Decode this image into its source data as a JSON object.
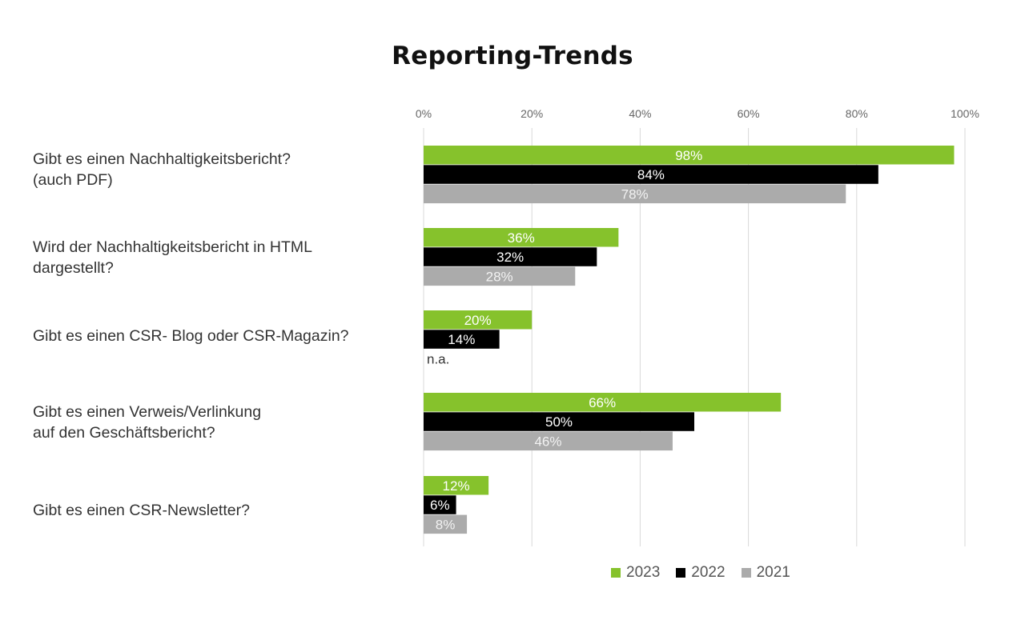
{
  "chart_data": {
    "type": "bar",
    "orientation": "horizontal",
    "title": "Reporting-Trends",
    "xlim": [
      0,
      100
    ],
    "x_ticks": [
      "0%",
      "20%",
      "40%",
      "60%",
      "80%",
      "100%"
    ],
    "grid": true,
    "legend_position": "bottom",
    "categories": [
      "Gibt es einen Nachhaltigkeitsbericht?\n(auch PDF)",
      "Wird der Nachhaltigkeitsbericht in HTML\ndargestellt?",
      "Gibt es einen CSR- Blog oder CSR-Magazin?",
      "Gibt es einen Verweis/Verlinkung\nauf den Geschäftsbericht?",
      "Gibt es einen CSR-Newsletter?"
    ],
    "series": [
      {
        "name": "2023",
        "color": "#86c22c",
        "values": [
          98,
          36,
          20,
          66,
          12
        ],
        "labels": [
          "98%",
          "36%",
          "20%",
          "66%",
          "12%"
        ]
      },
      {
        "name": "2022",
        "color": "#000000",
        "values": [
          84,
          32,
          14,
          50,
          6
        ],
        "labels": [
          "84%",
          "32%",
          "14%",
          "50%",
          "6%"
        ]
      },
      {
        "name": "2021",
        "color": "#ababab",
        "values": [
          78,
          28,
          null,
          46,
          8
        ],
        "labels": [
          "78%",
          "28%",
          "n.a.",
          "46%",
          "8%"
        ]
      }
    ]
  }
}
